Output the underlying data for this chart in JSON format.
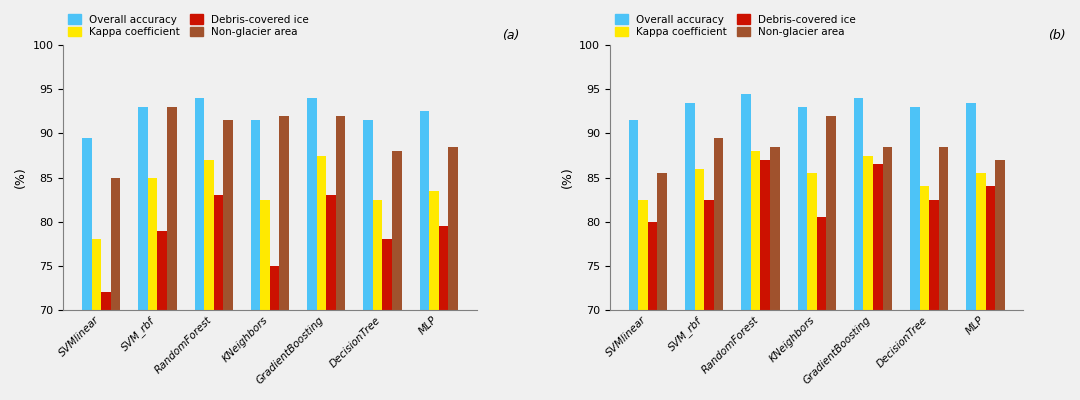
{
  "categories": [
    "SVMlinear",
    "SVM_rbf",
    "RandomForest",
    "KNeighbors",
    "GradientBoosting",
    "DecisionTree",
    "MLP"
  ],
  "panel_a": {
    "overall_accuracy": [
      89.5,
      93.0,
      94.0,
      91.5,
      94.0,
      91.5,
      92.5
    ],
    "kappa_coefficient": [
      78.0,
      85.0,
      87.0,
      82.5,
      87.5,
      82.5,
      83.5
    ],
    "debris_covered_ice": [
      72.0,
      79.0,
      83.0,
      75.0,
      83.0,
      78.0,
      79.5
    ],
    "non_glacier_area": [
      85.0,
      93.0,
      91.5,
      92.0,
      92.0,
      88.0,
      88.5
    ]
  },
  "panel_b": {
    "overall_accuracy": [
      91.5,
      93.5,
      94.5,
      93.0,
      94.0,
      93.0,
      93.5
    ],
    "kappa_coefficient": [
      82.5,
      86.0,
      88.0,
      85.5,
      87.5,
      84.0,
      85.5
    ],
    "debris_covered_ice": [
      80.0,
      82.5,
      87.0,
      80.5,
      86.5,
      82.5,
      84.0
    ],
    "non_glacier_area": [
      85.5,
      89.5,
      88.5,
      92.0,
      88.5,
      88.5,
      87.0
    ]
  },
  "colors": {
    "overall_accuracy": "#4DC3F7",
    "kappa_coefficient": "#FFE900",
    "debris_covered_ice": "#CC1100",
    "non_glacier_area": "#A0522D"
  },
  "legend_labels": [
    "Overall accuracy",
    "Kappa coefficient",
    "Debris-covered ice",
    "Non-glacier area"
  ],
  "ylabel": "(%)",
  "ylim": [
    70,
    100
  ],
  "yticks": [
    70,
    75,
    80,
    85,
    90,
    95,
    100
  ],
  "panel_labels": [
    "(a)",
    "(b)"
  ],
  "bar_width": 0.17,
  "figsize": [
    10.8,
    4.0
  ],
  "dpi": 100,
  "bg_color": "#F0F0F0"
}
